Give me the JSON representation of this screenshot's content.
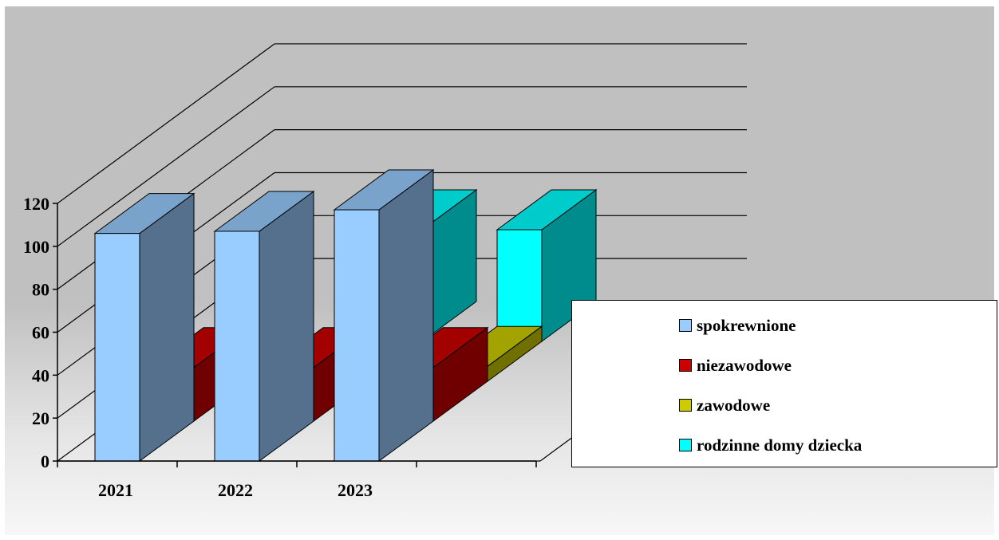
{
  "chart_data": {
    "type": "bar",
    "categories": [
      "2021",
      "2022",
      "2023"
    ],
    "ylim": [
      0,
      120
    ],
    "yticks": [
      0,
      20,
      40,
      60,
      80,
      100,
      120
    ],
    "series": [
      {
        "name": "spokrewnione",
        "values": [
          106,
          107,
          117
        ],
        "color": "#99ccff"
      },
      {
        "name": "niezawodowe",
        "values": [
          25,
          25,
          25
        ],
        "color": "#cc0000"
      },
      {
        "name": "zawodowe",
        "values": [
          null,
          null,
          7
        ],
        "color": "#cccc00"
      },
      {
        "name": "rodzinne domy dziecka",
        "values": [
          null,
          52,
          52
        ],
        "color": "#00ffff"
      }
    ],
    "legend_position": "right",
    "grid": true
  }
}
